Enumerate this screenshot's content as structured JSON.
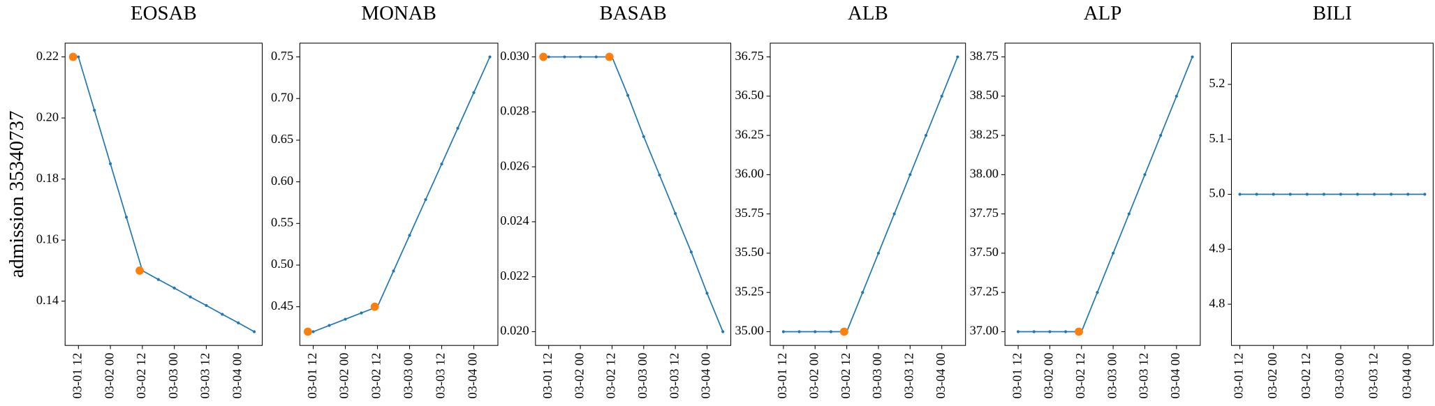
{
  "chart_data": [
    {
      "type": "line",
      "title": "EOSAB",
      "ylabel": "admission 35340737",
      "xlim": [
        "03-01 07",
        "03-04 09"
      ],
      "xticks": [
        "03-01 12",
        "03-02 00",
        "03-02 12",
        "03-03 00",
        "03-03 12",
        "03-04 00"
      ],
      "ylim": [
        0.1255,
        0.2245
      ],
      "yticks": [
        0.14,
        0.16,
        0.18,
        {
          "value": 0.2,
          "label": "0.20"
        },
        0.22
      ],
      "series": [
        {
          "kind": "line",
          "color": "#1f77b4",
          "x": [
            "03-01 12",
            "03-01 18",
            "03-02 00",
            "03-02 06",
            "03-02 12",
            "03-02 18",
            "03-03 00",
            "03-03 06",
            "03-03 12",
            "03-03 18",
            "03-04 00",
            "03-04 06"
          ],
          "values": [
            0.22,
            0.2025,
            0.185,
            0.1675,
            0.15,
            0.1471,
            0.1443,
            0.1414,
            0.1386,
            0.1357,
            0.1329,
            0.13
          ]
        },
        {
          "kind": "scatter",
          "color": "#ff7f0e",
          "x": [
            "03-01 10",
            "03-02 11"
          ],
          "values": [
            0.22,
            0.15
          ]
        }
      ]
    },
    {
      "type": "line",
      "title": "MONAB",
      "xlim": [
        "03-01 07",
        "03-04 09"
      ],
      "xticks": [
        "03-01 12",
        "03-02 00",
        "03-02 12",
        "03-03 00",
        "03-03 12",
        "03-04 00"
      ],
      "ylim": [
        0.4035,
        0.7665
      ],
      "yticks": [
        0.45,
        {
          "value": 0.5,
          "label": "0.50"
        },
        0.55,
        {
          "value": 0.6,
          "label": "0.60"
        },
        0.65,
        {
          "value": 0.7,
          "label": "0.70"
        },
        0.75
      ],
      "series": [
        {
          "kind": "line",
          "color": "#1f77b4",
          "x": [
            "03-01 12",
            "03-01 18",
            "03-02 00",
            "03-02 06",
            "03-02 12",
            "03-02 18",
            "03-03 00",
            "03-03 06",
            "03-03 12",
            "03-03 18",
            "03-04 00",
            "03-04 06"
          ],
          "values": [
            0.42,
            0.4275,
            0.435,
            0.4425,
            0.45,
            0.4929,
            0.5357,
            0.5786,
            0.6214,
            0.6643,
            0.7071,
            0.75
          ]
        },
        {
          "kind": "scatter",
          "color": "#ff7f0e",
          "x": [
            "03-01 10",
            "03-02 11"
          ],
          "values": [
            0.42,
            0.45
          ]
        }
      ]
    },
    {
      "type": "line",
      "title": "BASAB",
      "xlim": [
        "03-01 07",
        "03-04 09"
      ],
      "xticks": [
        "03-01 12",
        "03-02 00",
        "03-02 12",
        "03-03 00",
        "03-03 12",
        "03-04 00"
      ],
      "ylim": [
        0.0195,
        0.0305
      ],
      "yticks": [
        {
          "value": 0.02,
          "label": "0.020"
        },
        0.022,
        0.024,
        0.026,
        0.028,
        {
          "value": 0.03,
          "label": "0.030"
        }
      ],
      "series": [
        {
          "kind": "line",
          "color": "#1f77b4",
          "x": [
            "03-01 12",
            "03-01 18",
            "03-02 00",
            "03-02 06",
            "03-02 12",
            "03-02 18",
            "03-03 00",
            "03-03 06",
            "03-03 12",
            "03-03 18",
            "03-04 00",
            "03-04 06"
          ],
          "values": [
            0.03,
            0.03,
            0.03,
            0.03,
            0.03,
            0.0286,
            0.0271,
            0.0257,
            0.0243,
            0.0229,
            0.0214,
            0.02
          ]
        },
        {
          "kind": "scatter",
          "color": "#ff7f0e",
          "x": [
            "03-01 10",
            "03-02 11"
          ],
          "values": [
            0.03,
            0.03
          ]
        }
      ]
    },
    {
      "type": "line",
      "title": "ALB",
      "xlim": [
        "03-01 07",
        "03-04 09"
      ],
      "xticks": [
        "03-01 12",
        "03-02 00",
        "03-02 12",
        "03-03 00",
        "03-03 12",
        "03-04 00"
      ],
      "ylim": [
        34.9125,
        36.8375
      ],
      "yticks": [
        {
          "value": 35,
          "label": "35.00"
        },
        35.25,
        {
          "value": 35.5,
          "label": "35.50"
        },
        35.75,
        {
          "value": 36,
          "label": "36.00"
        },
        36.25,
        {
          "value": 36.5,
          "label": "36.50"
        },
        36.75
      ],
      "series": [
        {
          "kind": "line",
          "color": "#1f77b4",
          "x": [
            "03-01 12",
            "03-01 18",
            "03-02 00",
            "03-02 06",
            "03-02 12",
            "03-02 18",
            "03-03 00",
            "03-03 06",
            "03-03 12",
            "03-03 18",
            "03-04 00",
            "03-04 06"
          ],
          "values": [
            35,
            35,
            35,
            35,
            35,
            35.25,
            35.5,
            35.75,
            36,
            36.25,
            36.5,
            36.75
          ]
        },
        {
          "kind": "scatter",
          "color": "#ff7f0e",
          "x": [
            "03-02 11"
          ],
          "values": [
            35
          ]
        }
      ]
    },
    {
      "type": "line",
      "title": "ALP",
      "xlim": [
        "03-01 07",
        "03-04 09"
      ],
      "xticks": [
        "03-01 12",
        "03-02 00",
        "03-02 12",
        "03-03 00",
        "03-03 12",
        "03-04 00"
      ],
      "ylim": [
        36.9125,
        38.8375
      ],
      "yticks": [
        {
          "value": 37,
          "label": "37.00"
        },
        37.25,
        {
          "value": 37.5,
          "label": "37.50"
        },
        37.75,
        {
          "value": 38,
          "label": "38.00"
        },
        38.25,
        {
          "value": 38.5,
          "label": "38.50"
        },
        38.75
      ],
      "series": [
        {
          "kind": "line",
          "color": "#1f77b4",
          "x": [
            "03-01 12",
            "03-01 18",
            "03-02 00",
            "03-02 06",
            "03-02 12",
            "03-02 18",
            "03-03 00",
            "03-03 06",
            "03-03 12",
            "03-03 18",
            "03-04 00",
            "03-04 06"
          ],
          "values": [
            37,
            37,
            37,
            37,
            37,
            37.25,
            37.5,
            37.75,
            38,
            38.25,
            38.5,
            38.75
          ]
        },
        {
          "kind": "scatter",
          "color": "#ff7f0e",
          "x": [
            "03-02 11"
          ],
          "values": [
            37
          ]
        }
      ]
    },
    {
      "type": "line",
      "title": "BILI",
      "xlim": [
        "03-01 09",
        "03-04 09"
      ],
      "xticks": [
        "03-01 12",
        "03-02 00",
        "03-02 12",
        "03-03 00",
        "03-03 12",
        "03-04 00"
      ],
      "ylim": [
        4.725,
        5.275
      ],
      "yticks": [
        4.8,
        4.9,
        {
          "value": 5,
          "label": "5.0"
        },
        5.1,
        5.2
      ],
      "series": [
        {
          "kind": "line",
          "color": "#1f77b4",
          "x": [
            "03-01 12",
            "03-01 18",
            "03-02 00",
            "03-02 06",
            "03-02 12",
            "03-02 18",
            "03-03 00",
            "03-03 06",
            "03-03 12",
            "03-03 18",
            "03-04 00",
            "03-04 06"
          ],
          "values": [
            5,
            5,
            5,
            5,
            5,
            5,
            5,
            5,
            5,
            5,
            5,
            5
          ]
        }
      ]
    }
  ]
}
